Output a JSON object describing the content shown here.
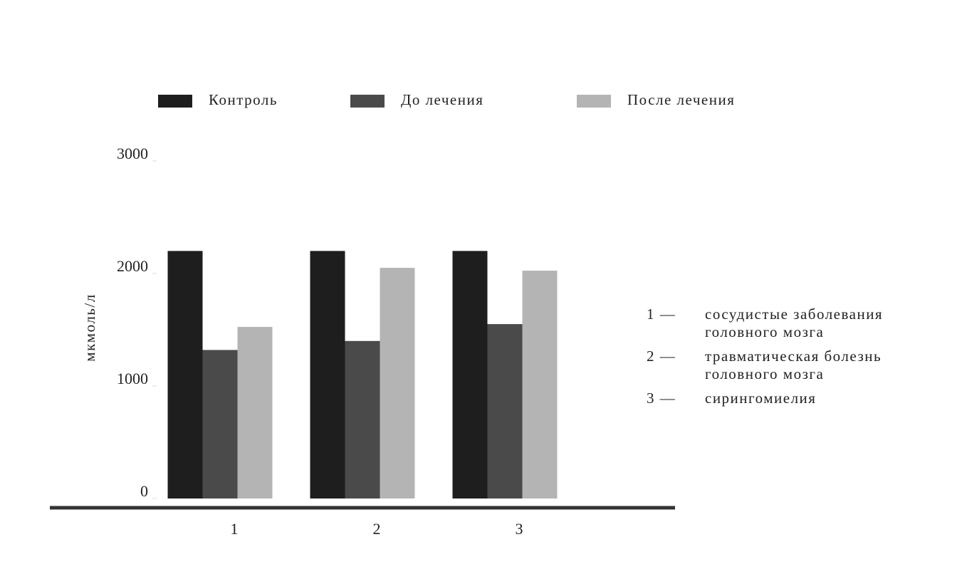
{
  "chart_data": {
    "type": "bar",
    "y_label": "мкмоль/л",
    "categories": [
      "1",
      "2",
      "3"
    ],
    "series": [
      {
        "name": "Контроль",
        "color": "#1e1e1e",
        "values": [
          2200,
          2200,
          2200
        ]
      },
      {
        "name": "До лечения",
        "color": "#4a4a4a",
        "values": [
          1320,
          1400,
          1550
        ]
      },
      {
        "name": "После лечения",
        "color": "#b4b4b4",
        "values": [
          1525,
          2050,
          2025
        ]
      }
    ],
    "ylim": [
      0,
      3000
    ],
    "yticks": [
      0,
      1000,
      2000,
      3000
    ],
    "grid": false,
    "notes": [
      {
        "key": "1 —",
        "lines": [
          "сосудистые заболевания",
          "головного мозга"
        ]
      },
      {
        "key": "2 —",
        "lines": [
          "травматическая болезнь",
          "головного мозга"
        ]
      },
      {
        "key": "3 —",
        "lines": [
          "сирингомиелия"
        ]
      }
    ]
  }
}
